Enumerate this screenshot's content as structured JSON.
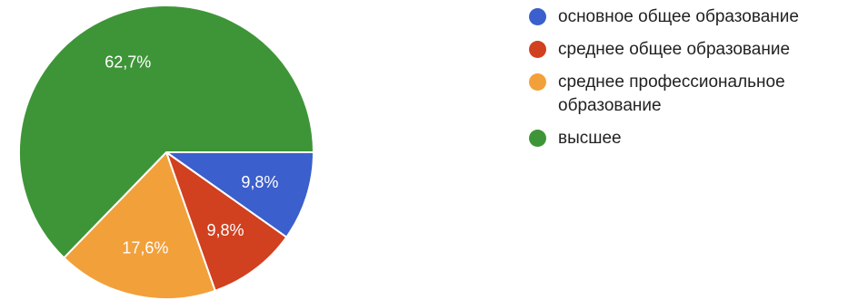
{
  "chart_data": {
    "type": "pie",
    "title": "",
    "slices": [
      {
        "label": "основное общее образование",
        "value": 9.8,
        "display": "9,8%",
        "color": "#3b5fcc"
      },
      {
        "label": "среднее общее образование",
        "value": 9.8,
        "display": "9,8%",
        "color": "#d1401f"
      },
      {
        "label": "среднее профессиональное образование",
        "value": 17.6,
        "display": "17,6%",
        "color": "#f2a03a"
      },
      {
        "label": "высшее",
        "value": 62.7,
        "display": "62,7%",
        "color": "#3e9538"
      }
    ],
    "start": "3 o'clock",
    "direction": "clockwise",
    "legend_position": "right"
  },
  "legend": {
    "items": [
      {
        "label": "основное общее образование",
        "color": "#3b5fcc"
      },
      {
        "label": "среднее общее образование",
        "color": "#d1401f"
      },
      {
        "label": "среднее профессиональное образование",
        "color": "#f2a03a"
      },
      {
        "label": "высшее",
        "color": "#3e9538"
      }
    ]
  }
}
